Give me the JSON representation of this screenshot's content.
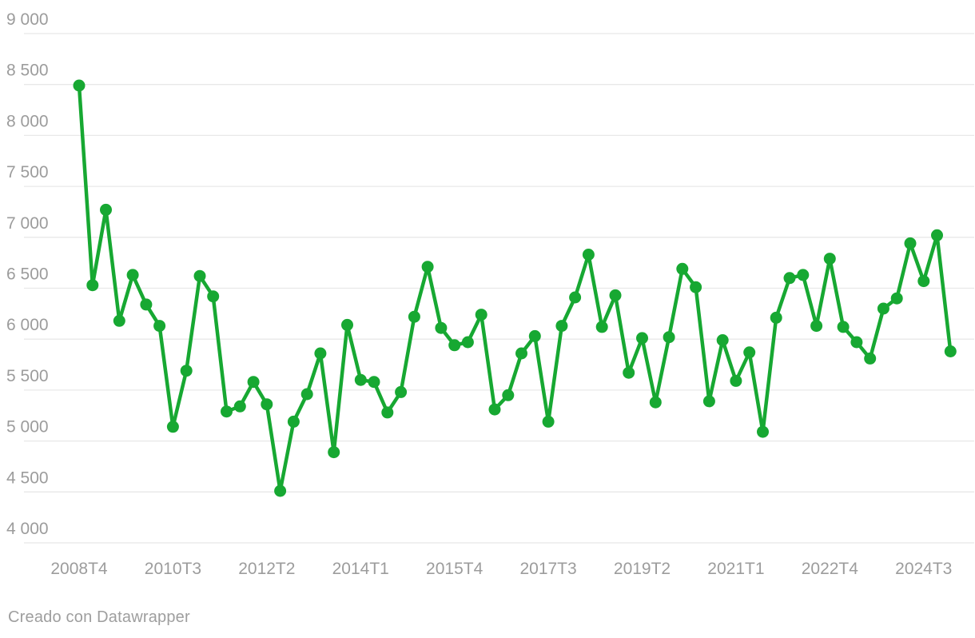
{
  "chart_data": {
    "type": "line",
    "title": "",
    "x": [
      "2008T4",
      "2009T1",
      "2009T2",
      "2009T3",
      "2009T4",
      "2010T1",
      "2010T2",
      "2010T3",
      "2010T4",
      "2011T1",
      "2011T2",
      "2011T3",
      "2011T4",
      "2012T1",
      "2012T2",
      "2012T3",
      "2012T4",
      "2013T1",
      "2013T2",
      "2013T3",
      "2013T4",
      "2014T1",
      "2014T2",
      "2014T3",
      "2014T4",
      "2015T1",
      "2015T2",
      "2015T3",
      "2015T4",
      "2016T1",
      "2016T2",
      "2016T3",
      "2016T4",
      "2017T1",
      "2017T2",
      "2017T3",
      "2017T4",
      "2018T1",
      "2018T2",
      "2018T3",
      "2018T4",
      "2019T1",
      "2019T2",
      "2019T3",
      "2019T4",
      "2020T1",
      "2020T2",
      "2020T3",
      "2020T4",
      "2021T1",
      "2021T2",
      "2021T3",
      "2021T4",
      "2022T1",
      "2022T2",
      "2022T3",
      "2022T4",
      "2023T1",
      "2023T2",
      "2023T3",
      "2023T4",
      "2024T1",
      "2024T2",
      "2024T3",
      "2024T4",
      "2025T1"
    ],
    "values": [
      8490,
      6530,
      7270,
      6180,
      6630,
      6340,
      6130,
      5140,
      5690,
      6620,
      6420,
      5290,
      5340,
      5580,
      5360,
      4510,
      5190,
      5460,
      5860,
      4890,
      6140,
      5600,
      5580,
      5280,
      5480,
      6220,
      6710,
      6110,
      5940,
      5970,
      6240,
      5310,
      5450,
      5860,
      6030,
      5190,
      6130,
      6410,
      6830,
      6120,
      6430,
      5670,
      6010,
      5380,
      6020,
      6690,
      6510,
      5390,
      5990,
      5590,
      5870,
      5090,
      6210,
      6600,
      6630,
      6130,
      6790,
      6120,
      5970,
      5810,
      6300,
      6400,
      6940,
      6570,
      7020,
      5880
    ],
    "xlabel": "",
    "ylabel": "",
    "ylim": [
      4000,
      9000
    ],
    "ytick_step": 500,
    "ytick_labels": [
      "9 000",
      "8 500",
      "8 000",
      "7 500",
      "7 000",
      "6 500",
      "6 000",
      "5 500",
      "5 000",
      "4 500",
      "4 000"
    ],
    "ytick_values": [
      9000,
      8500,
      8000,
      7500,
      7000,
      6500,
      6000,
      5500,
      5000,
      4500,
      4000
    ],
    "xtick_labels": [
      "2008T4",
      "2010T3",
      "2012T2",
      "2014T1",
      "2015T4",
      "2017T3",
      "2019T2",
      "2021T1",
      "2022T4",
      "2024T3"
    ],
    "xtick_indices": [
      0,
      7,
      14,
      21,
      28,
      35,
      42,
      49,
      56,
      63
    ],
    "grid": true,
    "legend": "none",
    "line_color": "#17a832",
    "gridline_color": "#e8e8e8",
    "tick_label_color": "#9c9c9c"
  },
  "footer": {
    "credit": "Creado con Datawrapper"
  }
}
